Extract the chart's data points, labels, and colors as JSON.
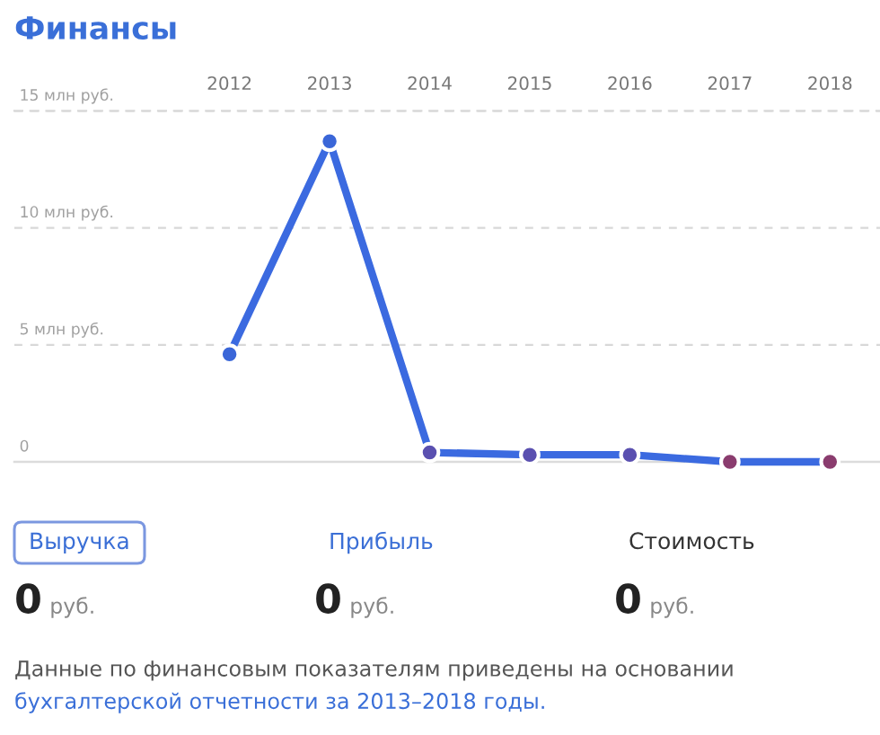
{
  "chart_data": [
    {
      "type": "line",
      "title": "Финансы",
      "categories": [
        "2012",
        "2013",
        "2014",
        "2015",
        "2016",
        "2017",
        "2018"
      ],
      "values": [
        4.6,
        13.7,
        0.4,
        0.3,
        0.3,
        0,
        0
      ],
      "color": "#3b6ae0",
      "colors": [
        "#3a66d8",
        "#3a66d8",
        "#5a50b0",
        "#5a50b0",
        "#5a50b0",
        "#8a3c6e",
        "#8a3c6e"
      ],
      "marker": "circle",
      "ylim": [
        0,
        15
      ],
      "yticks": [
        0,
        {
          "value": 5,
          "label": "5 млн руб."
        },
        {
          "value": 10,
          "label": "10 млн руб."
        },
        {
          "value": 15,
          "label": "15 млн руб."
        }
      ],
      "grid": "y"
    },
    {
      "type": "other",
      "categories": [
        "Выручка",
        "Прибыль",
        "Стоимость"
      ],
      "values": [
        0,
        0,
        0
      ],
      "data_labels": true,
      "ylabel": "руб.",
      "colors": [
        "#3b6fd6",
        "#3b6fd6",
        "#333333"
      ],
      "annotations": [
        "Данные по финансовым показателям приведены на основании",
        "бухгалтерской отчетности за 2013–2018 годы."
      ]
    }
  ]
}
